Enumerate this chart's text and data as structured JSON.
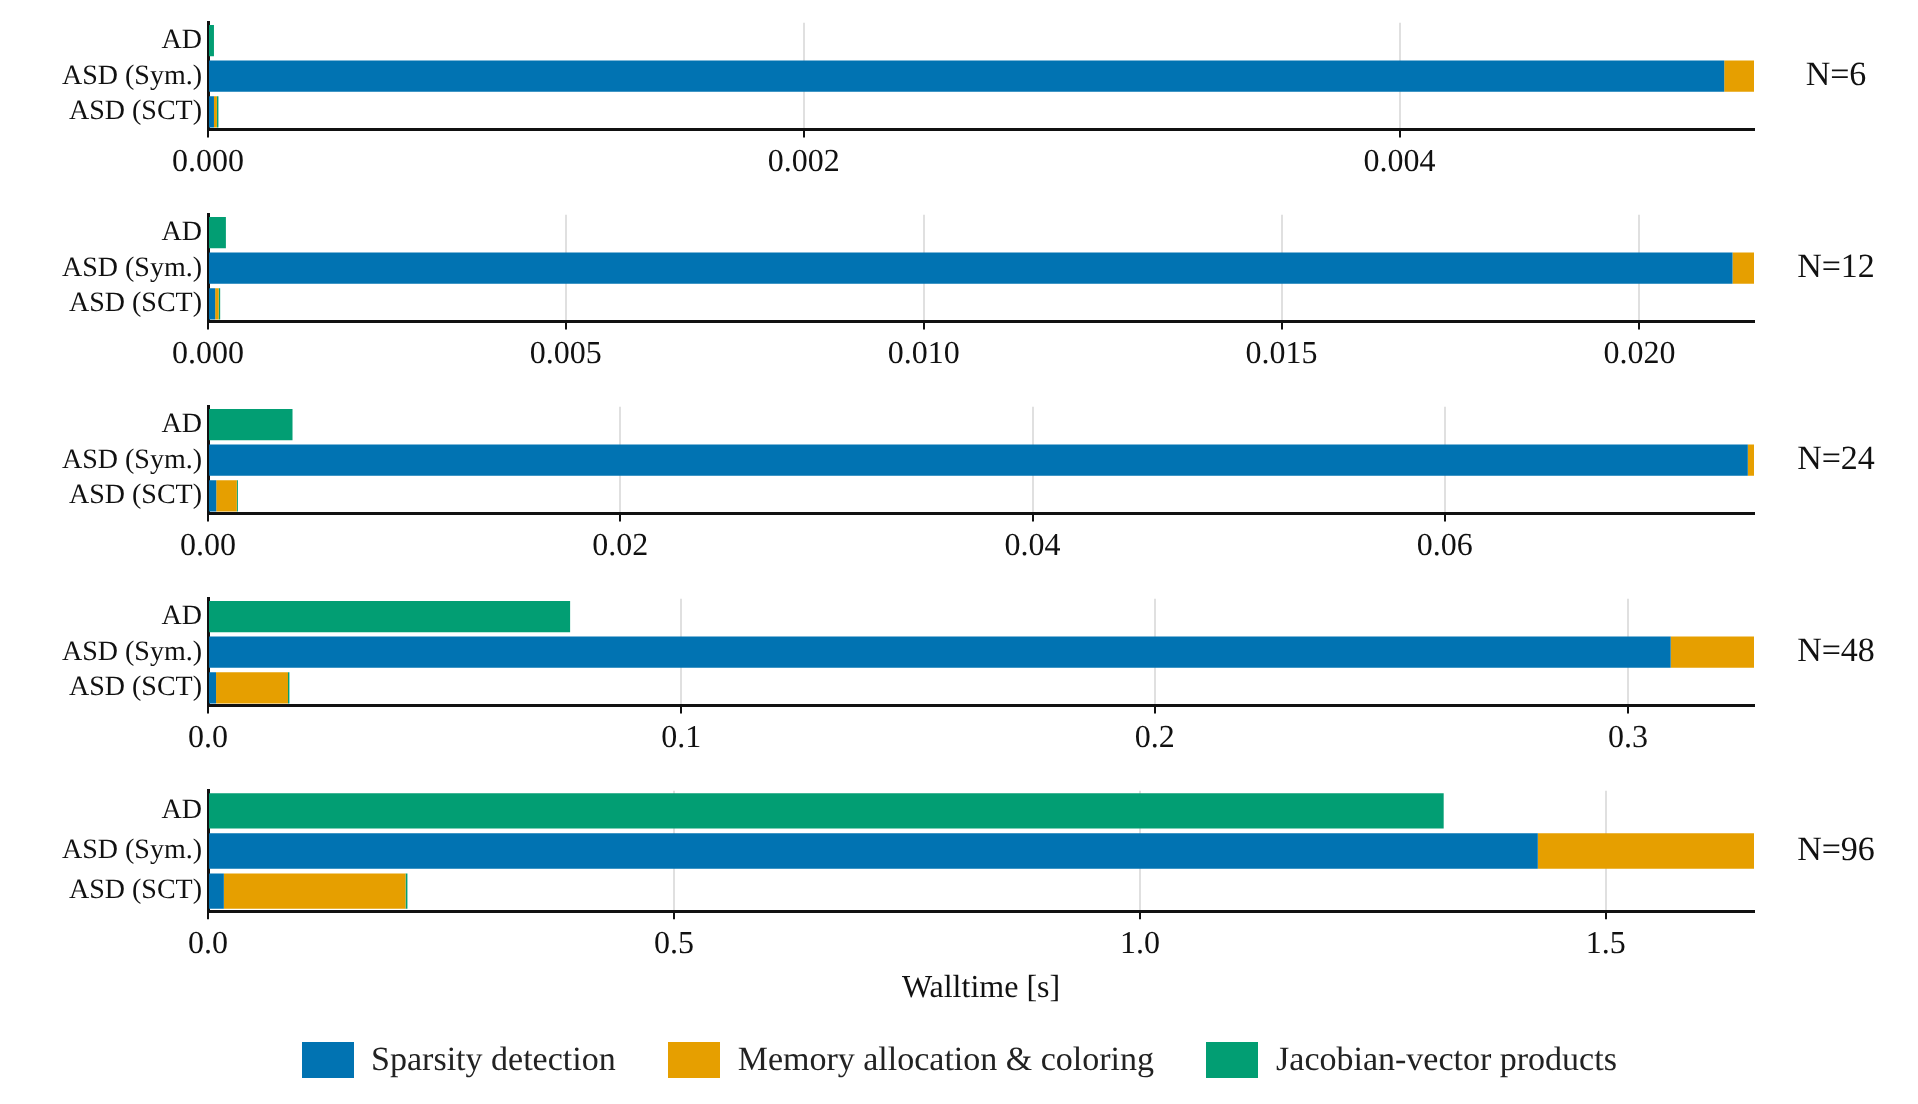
{
  "chart_data": [
    {
      "type": "bar",
      "orientation": "horizontal",
      "stacked": true,
      "categories": [
        "AD",
        "ASD (Sym.)",
        "ASD (SCT)"
      ],
      "xlim": [
        0,
        0.00519
      ],
      "xticks": [
        {
          "value": 0,
          "label": "0.000"
        },
        0.002,
        0.004
      ],
      "grid": "x",
      "annotations": [
        "N=6"
      ],
      "series": [
        {
          "color": "#0173b2",
          "values": [
            0,
            0.00509,
            2e-05
          ]
        },
        {
          "color": "#e69f00",
          "values": [
            0,
            0.0001,
            1e-05
          ]
        },
        {
          "color": "#029e73",
          "values": [
            2e-05,
            0,
            5e-06
          ]
        }
      ]
    },
    {
      "type": "bar",
      "orientation": "horizontal",
      "stacked": true,
      "categories": [
        "AD",
        "ASD (Sym.)",
        "ASD (SCT)"
      ],
      "xlim": [
        0,
        0.0216
      ],
      "xticks": [
        {
          "value": 0,
          "label": "0.000"
        },
        0.005,
        {
          "value": 0.01,
          "label": "0.010"
        },
        0.015,
        {
          "value": 0.02,
          "label": "0.020"
        }
      ],
      "grid": "x",
      "annotations": [
        "N=12"
      ],
      "series": [
        {
          "color": "#0173b2",
          "values": [
            0,
            0.0213,
            0.0001
          ]
        },
        {
          "color": "#e69f00",
          "values": [
            0,
            0.0003,
            5e-05
          ]
        },
        {
          "color": "#029e73",
          "values": [
            0.00025,
            0,
            2e-05
          ]
        }
      ]
    },
    {
      "type": "bar",
      "orientation": "horizontal",
      "stacked": true,
      "categories": [
        "AD",
        "ASD (Sym.)",
        "ASD (SCT)"
      ],
      "xlim": [
        0,
        0.075
      ],
      "xticks": [
        {
          "value": 0,
          "label": "0.00"
        },
        0.02,
        0.04,
        0.06
      ],
      "grid": "x",
      "annotations": [
        "N=24"
      ],
      "series": [
        {
          "color": "#0173b2",
          "values": [
            0,
            0.0747,
            0.0004
          ]
        },
        {
          "color": "#e69f00",
          "values": [
            0,
            0.0004,
            0.001
          ]
        },
        {
          "color": "#029e73",
          "values": [
            0.0041,
            0,
            5e-05
          ]
        }
      ]
    },
    {
      "type": "bar",
      "orientation": "horizontal",
      "stacked": true,
      "categories": [
        "AD",
        "ASD (Sym.)",
        "ASD (SCT)"
      ],
      "xlim": [
        0,
        0.3266
      ],
      "xticks": [
        {
          "value": 0,
          "label": "0.0"
        },
        0.1,
        0.2,
        0.3
      ],
      "grid": "x",
      "annotations": [
        "N=48"
      ],
      "series": [
        {
          "color": "#0173b2",
          "values": [
            0,
            0.309,
            0.0017
          ]
        },
        {
          "color": "#e69f00",
          "values": [
            0,
            0.018,
            0.0152
          ]
        },
        {
          "color": "#029e73",
          "values": [
            0.0765,
            0,
            0.0003
          ]
        }
      ]
    },
    {
      "type": "bar",
      "orientation": "horizontal",
      "stacked": true,
      "categories": [
        "AD",
        "ASD (Sym.)",
        "ASD (SCT)"
      ],
      "xlim": [
        0,
        1.659
      ],
      "xticks": [
        {
          "value": 0,
          "label": "0.0"
        },
        0.5,
        {
          "value": 1,
          "label": "1.0"
        },
        1.5
      ],
      "grid": "x",
      "annotations": [
        "N=96"
      ],
      "xlabel": "Walltime [s]",
      "legend": "bottom",
      "series": [
        {
          "name": "Sparsity detection",
          "color": "#0173b2",
          "values": [
            0,
            1.427,
            0.017
          ]
        },
        {
          "name": "Memory allocation & coloring",
          "color": "#e69f00",
          "values": [
            0,
            0.232,
            0.195
          ]
        },
        {
          "name": "Jacobian-vector products",
          "color": "#029e73",
          "values": [
            1.326,
            0,
            0.002
          ]
        }
      ]
    }
  ]
}
